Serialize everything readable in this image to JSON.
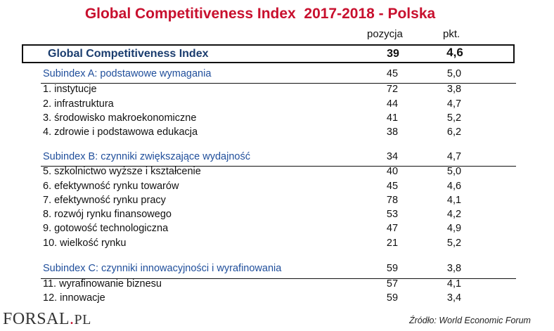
{
  "title": "Global Competitiveness Index  2017-2018 - Polska",
  "columns": {
    "position": "pozycja",
    "points": "pkt."
  },
  "gci": {
    "label": "Global Competitiveness Index",
    "position": "39",
    "points": "4,6"
  },
  "rows": [
    {
      "label": "Subindex A: podstawowe wymagania",
      "position": "45",
      "points": "5,0",
      "type": "subindex"
    },
    {
      "label": "1.  instytucje",
      "position": "72",
      "points": "3,8",
      "type": "item"
    },
    {
      "label": "2. infrastruktura",
      "position": "44",
      "points": "4,7",
      "type": "item"
    },
    {
      "label": "3. środowisko makroekonomiczne",
      "position": "41",
      "points": "5,2",
      "type": "item"
    },
    {
      "label": "4. zdrowie i podstawowa edukacja",
      "position": "38",
      "points": "6,2",
      "type": "item"
    },
    {
      "label": "Subindex B: czynniki zwiększające wydajność",
      "position": "34",
      "points": "4,7",
      "type": "subindex"
    },
    {
      "label": "5. szkolnictwo wyższe i kształcenie",
      "position": "40",
      "points": "5,0",
      "type": "item"
    },
    {
      "label": "6. efektywność rynku towarów",
      "position": "45",
      "points": "4,6",
      "type": "item"
    },
    {
      "label": "7. efektywność rynku pracy",
      "position": "78",
      "points": "4,1",
      "type": "item"
    },
    {
      "label": "8. rozwój rynku finansowego",
      "position": "53",
      "points": "4,2",
      "type": "item"
    },
    {
      "label": "9. gotowość technologiczna",
      "position": "47",
      "points": "4,9",
      "type": "item"
    },
    {
      "label": "10. wielkość rynku",
      "position": "21",
      "points": "5,2",
      "type": "item"
    },
    {
      "label": "Subindex C: czynniki innowacyjności i wyrafinowania",
      "position": "59",
      "points": "3,8",
      "type": "subindex"
    },
    {
      "label": "11. wyrafinowanie biznesu",
      "position": "57",
      "points": "4,1",
      "type": "item"
    },
    {
      "label": "12. innowacje",
      "position": "59",
      "points": "3,4",
      "type": "item"
    }
  ],
  "logo": {
    "main": "FORSAL",
    "dot": ".",
    "suffix": "PL"
  },
  "source": "Źródło:  World Economic Forum",
  "colors": {
    "title": "#c8102e",
    "subindex": "#1f4e9b",
    "gci_label": "#1a3c6e"
  }
}
